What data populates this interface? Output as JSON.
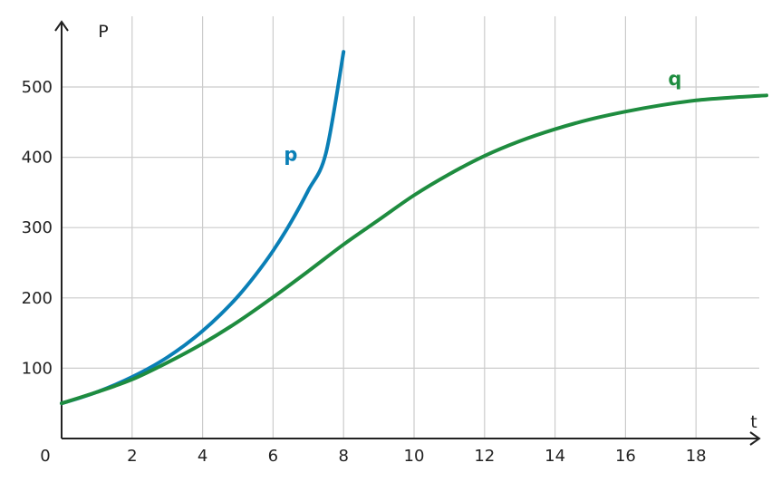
{
  "chart_data": {
    "type": "line",
    "title": "",
    "xlabel": "t",
    "ylabel": "P",
    "xlim": [
      0,
      20
    ],
    "ylim": [
      0,
      550
    ],
    "grid": true,
    "origin_label": "0",
    "x_ticks": [
      2,
      4,
      6,
      8,
      10,
      12,
      14,
      16,
      18
    ],
    "y_ticks": [
      100,
      200,
      300,
      400,
      500
    ],
    "x_tick_labels": [
      "2",
      "4",
      "6",
      "8",
      "10",
      "12",
      "14",
      "16",
      "18"
    ],
    "y_tick_labels": [
      "100",
      "200",
      "300",
      "400",
      "500"
    ],
    "series": [
      {
        "name": "p",
        "color": "#0a7fb6",
        "x": [
          0,
          0.5,
          1,
          1.5,
          2,
          2.5,
          3,
          3.5,
          4,
          4.5,
          5,
          5.5,
          6,
          6.5,
          7,
          7.5,
          8
        ],
        "y": [
          50,
          57.5,
          66,
          76,
          87.5,
          100.5,
          115.5,
          133,
          153,
          176,
          202,
          232.5,
          267,
          307,
          353,
          406,
          550
        ]
      },
      {
        "name": "q",
        "color": "#1e8c3f",
        "x": [
          0,
          1,
          2,
          3,
          4,
          5,
          6,
          7,
          8,
          9,
          10,
          11,
          12,
          13,
          14,
          15,
          16,
          17,
          18,
          19,
          20
        ],
        "y": [
          50,
          66,
          84,
          108,
          135,
          166,
          201,
          238,
          276,
          311,
          346,
          376,
          402,
          423,
          440,
          454,
          465,
          474,
          481,
          485,
          488
        ]
      }
    ]
  },
  "labels": {
    "x_axis_title": "t",
    "y_axis_title": "P",
    "origin": "0",
    "series_p": "p",
    "series_q": "q"
  },
  "colors": {
    "grid": "#cccccc",
    "axis": "#222222",
    "series_p": "#0a7fb6",
    "series_q": "#1e8c3f"
  }
}
